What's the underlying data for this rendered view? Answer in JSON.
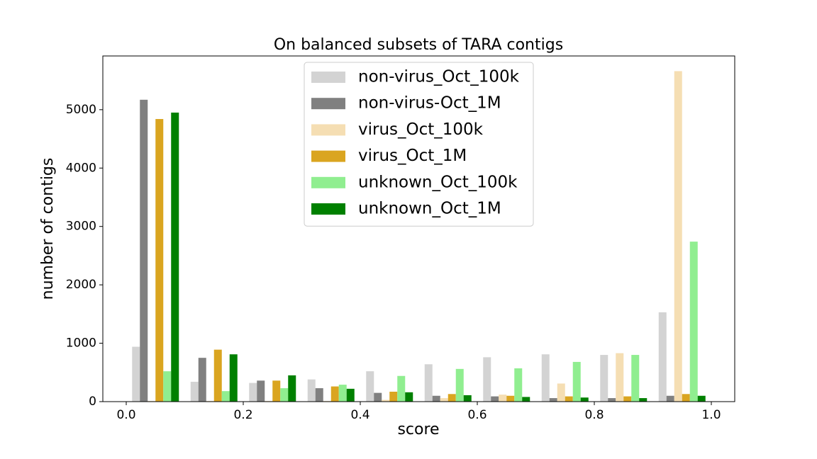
{
  "chart_data": {
    "type": "histogram",
    "title": "On balanced subsets of TARA contigs",
    "xlabel": "score",
    "ylabel": "number of contigs",
    "bins": [
      0,
      0.1,
      0.2,
      0.3,
      0.4,
      0.5,
      0.6,
      0.7,
      0.8,
      0.9,
      1.0
    ],
    "series": [
      {
        "name": "non-virus_Oct_100k",
        "color": "#d3d3d3",
        "values": [
          940,
          340,
          320,
          380,
          520,
          640,
          760,
          810,
          800,
          1530
        ]
      },
      {
        "name": "non-virus-Oct_1M",
        "color": "#808080",
        "values": [
          5170,
          750,
          360,
          230,
          150,
          100,
          90,
          60,
          60,
          100
        ]
      },
      {
        "name": "virus_Oct_100k",
        "color": "#f5deb3",
        "values": [
          10,
          10,
          10,
          10,
          30,
          60,
          120,
          310,
          830,
          5660
        ]
      },
      {
        "name": "virus_Oct_1M",
        "color": "#daa520",
        "values": [
          4840,
          890,
          360,
          260,
          170,
          130,
          100,
          90,
          90,
          130
        ]
      },
      {
        "name": "unknown_Oct_100k",
        "color": "#90ee90",
        "values": [
          520,
          180,
          230,
          290,
          440,
          560,
          570,
          680,
          800,
          2740
        ]
      },
      {
        "name": "unknown_Oct_1M",
        "color": "#008000",
        "values": [
          4950,
          810,
          450,
          220,
          160,
          110,
          80,
          70,
          60,
          100
        ]
      }
    ],
    "xlim": [
      -0.04,
      1.04
    ],
    "ylim": [
      0,
      5920
    ],
    "xticks": [
      {
        "value": 0,
        "label": "0.0"
      },
      0.2,
      0.4,
      0.6,
      0.8,
      {
        "value": 1.0,
        "label": "1.0"
      }
    ],
    "yticks": [
      0,
      1000,
      2000,
      3000,
      4000,
      5000
    ],
    "legend": "upper center",
    "grid": false
  }
}
